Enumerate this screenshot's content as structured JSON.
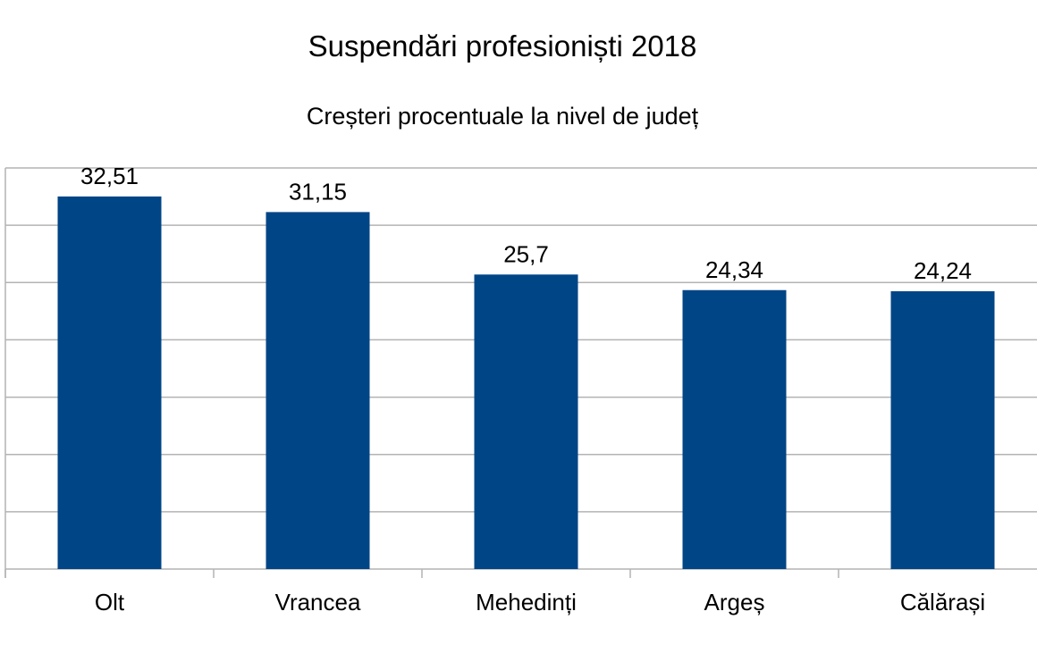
{
  "chart_data": {
    "type": "bar",
    "title": "Suspendări profesioniști 2018",
    "subtitle": "Creșteri procentuale la nivel de județ",
    "categories": [
      "Olt",
      "Vrancea",
      "Mehedinți",
      "Argeș",
      "Călărași"
    ],
    "values": [
      32.51,
      31.15,
      25.7,
      24.34,
      24.24
    ],
    "value_labels": [
      "32,51",
      "31,15",
      "25,7",
      "24,34",
      "24,24"
    ],
    "xlabel": "",
    "ylabel": "",
    "ylim": [
      0,
      35
    ],
    "y_grid_step": 5,
    "y_tick_labels_visible": false,
    "grid": true,
    "legend": "none",
    "bar_color": "#004586"
  }
}
